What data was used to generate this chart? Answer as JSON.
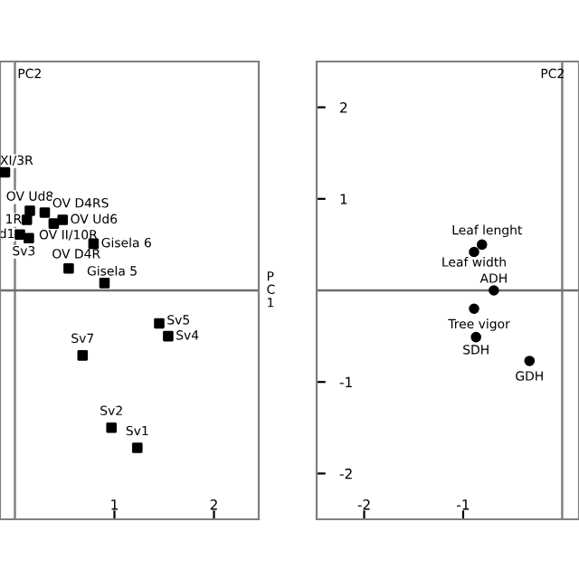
{
  "chart_data": [
    {
      "type": "scatter",
      "xlabel": "PC1",
      "ylabel": "PC2",
      "marker": "square",
      "legend": false,
      "grid": false,
      "tick_labels": "x",
      "x": [
        -0.1,
        0.15,
        0.3,
        0.12,
        0.39,
        0.48,
        0.05,
        0.14,
        0.79,
        0.54,
        0.9,
        1.45,
        1.54,
        0.68,
        0.97,
        1.23
      ],
      "series": [
        {
          "color": "#000000",
          "values": [
            1.29,
            0.87,
            0.85,
            0.77,
            0.73,
            0.77,
            0.61,
            0.57,
            0.51,
            0.24,
            0.08,
            -0.36,
            -0.5,
            -0.71,
            -1.5,
            -1.72
          ]
        }
      ],
      "annotations": [
        {
          "text": "XI/3R",
          "x": -0.1,
          "y": 1.29
        },
        {
          "text": "OV Ud8",
          "x": 0.15,
          "y": 0.87
        },
        {
          "text": "OV D4RS",
          "x": 0.3,
          "y": 0.85
        },
        {
          "text": "1R",
          "x": 0.12,
          "y": 0.77
        },
        {
          "text": "OV Ud6",
          "x": 0.48,
          "y": 0.77
        },
        {
          "text": "d1",
          "x": 0.05,
          "y": 0.61
        },
        {
          "text": "OV II/10R",
          "x": 0.14,
          "y": 0.57
        },
        {
          "text": "Sv3",
          "x": 0.14,
          "y": 0.57
        },
        {
          "text": "Gisela 6",
          "x": 0.79,
          "y": 0.51
        },
        {
          "text": "OV D4R",
          "x": 0.54,
          "y": 0.24
        },
        {
          "text": "Gisela 5",
          "x": 0.9,
          "y": 0.08
        },
        {
          "text": "Sv5",
          "x": 1.45,
          "y": -0.36
        },
        {
          "text": "Sv4",
          "x": 1.54,
          "y": -0.5
        },
        {
          "text": "Sv7",
          "x": 0.68,
          "y": -0.71
        },
        {
          "text": "Sv2",
          "x": 0.97,
          "y": -1.5
        },
        {
          "text": "Sv1",
          "x": 1.23,
          "y": -1.72
        }
      ],
      "xlim": [
        -0.15,
        2.45
      ],
      "ylim": [
        -2.5,
        2.5
      ],
      "xticks": [
        1,
        2
      ],
      "ref_lines": [
        {
          "axis": "x",
          "value": 0,
          "color": "#808080"
        },
        {
          "axis": "y",
          "value": 0,
          "color": "#6e6e6e"
        }
      ]
    },
    {
      "type": "scatter",
      "ylabel": "PC2",
      "marker": "circle",
      "legend": false,
      "grid": false,
      "x": [
        -0.81,
        -0.89,
        -0.69,
        -0.89,
        -0.87,
        -0.33
      ],
      "series": [
        {
          "color": "#000000",
          "values": [
            0.5,
            0.42,
            0.0,
            -0.2,
            -0.51,
            -0.77
          ]
        }
      ],
      "annotations": [
        {
          "text": "Leaf lenght",
          "x": -0.81,
          "y": 0.5
        },
        {
          "text": "Leaf width",
          "x": -0.89,
          "y": 0.42
        },
        {
          "text": "ADH",
          "x": -0.69,
          "y": 0.0
        },
        {
          "text": "Tree vigor",
          "x": -0.89,
          "y": -0.2
        },
        {
          "text": "SDH",
          "x": -0.87,
          "y": -0.51
        },
        {
          "text": "GDH",
          "x": -0.33,
          "y": -0.77
        }
      ],
      "xlim": [
        -2.48,
        0.17
      ],
      "ylim": [
        -2.5,
        2.5
      ],
      "xticks": [
        -2,
        -1
      ],
      "yticks": [
        -2,
        -1,
        1,
        2
      ],
      "ref_lines": [
        {
          "axis": "x",
          "value": 0,
          "color": "#808080"
        },
        {
          "axis": "y",
          "value": 0,
          "color": "#6e6e6e"
        }
      ]
    }
  ]
}
